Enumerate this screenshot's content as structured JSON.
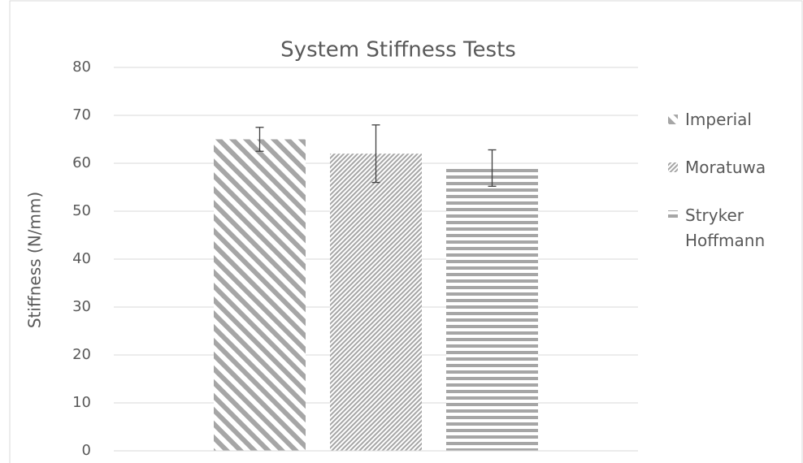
{
  "chart_data": {
    "type": "bar",
    "title": "System Stiffness Tests",
    "ylabel": "Stiffness (N/mm)",
    "categories": [
      null
    ],
    "series": [
      {
        "name": "Imperial",
        "color": "#a6a6a6",
        "values": [
          65
        ],
        "errors": [
          2.5
        ]
      },
      {
        "name": "Moratuwa",
        "color": "#a6a6a6",
        "values": [
          62
        ],
        "errors": [
          6
        ]
      },
      {
        "name": "Stryker Hoffmann",
        "color": "#a6a6a6",
        "values": [
          59
        ],
        "errors": [
          3.8
        ]
      }
    ],
    "ylim": [
      0,
      80
    ],
    "yticks": [
      0,
      10,
      20,
      30,
      40,
      50,
      60,
      70,
      80
    ],
    "grid": true,
    "legend": "right"
  }
}
